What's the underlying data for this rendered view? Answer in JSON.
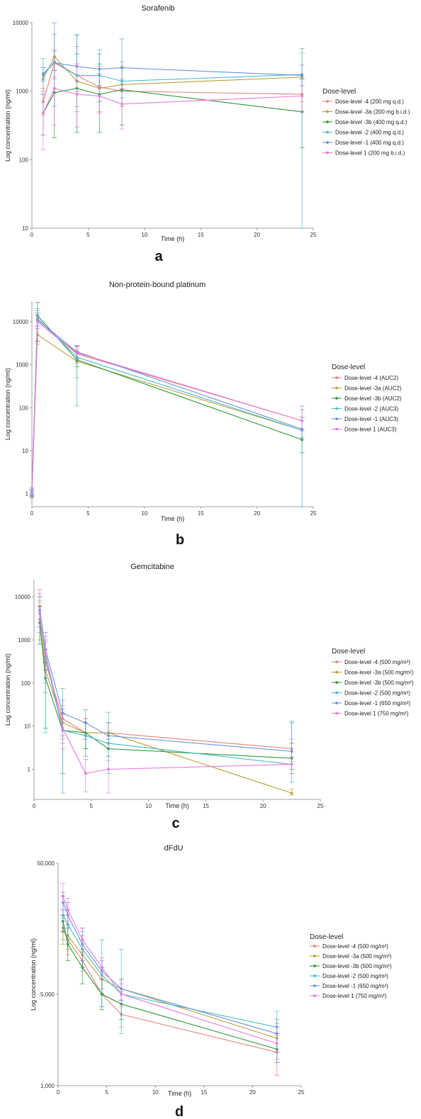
{
  "series_colors": [
    "#e8837b",
    "#b8a23c",
    "#2f9a3a",
    "#46bcc8",
    "#6b93e0",
    "#e67be0"
  ],
  "chart_data": [
    {
      "type": "line",
      "panel_label": "a",
      "title": "Sorafenib",
      "xlabel": "Time (h)",
      "ylabel": "Log concentration (ng/ml)",
      "xlim": [
        0,
        25
      ],
      "ylim": [
        10,
        10000
      ],
      "yscale": "log",
      "xticks": [
        0,
        5,
        10,
        15,
        20,
        25
      ],
      "yticks": [
        {
          "v": 10,
          "label": "10"
        },
        {
          "v": 100,
          "label": "100"
        },
        {
          "v": 1000,
          "label": "1000"
        },
        {
          "v": 10000,
          "label": "10000"
        }
      ],
      "grid": false,
      "legend": {
        "title": "Dose-level",
        "placement": "right"
      },
      "series": [
        {
          "name": "Dose-level -4 (200 mg q.d.)",
          "x": [
            1,
            2,
            4,
            6,
            8,
            24
          ],
          "y": [
            700,
            2600,
            1700,
            1150,
            1000,
            900
          ],
          "lo": [
            450,
            1600,
            1000,
            700,
            600,
            500
          ],
          "hi": [
            1100,
            3800,
            2500,
            1800,
            1500,
            1500
          ]
        },
        {
          "name": "Dose-level -3a (200 mg b.i.d.)",
          "x": [
            1,
            2,
            4,
            6,
            8,
            24
          ],
          "y": [
            1500,
            3200,
            1400,
            1100,
            1250,
            1600
          ],
          "lo": [
            900,
            2000,
            600,
            500,
            600,
            700
          ],
          "hi": [
            2200,
            4000,
            4500,
            2300,
            2300,
            3600
          ]
        },
        {
          "name": "Dose-level -3b (400 mg q.d.)",
          "x": [
            1,
            2,
            4,
            6,
            8,
            24
          ],
          "y": [
            480,
            950,
            1100,
            900,
            1050,
            500
          ],
          "lo": [
            230,
            210,
            250,
            250,
            320,
            150
          ],
          "hi": [
            900,
            2000,
            3500,
            2500,
            2200,
            1500
          ]
        },
        {
          "name": "Dose-level -2 (400 mg q.d.)",
          "x": [
            1,
            2,
            4,
            6,
            8,
            24
          ],
          "y": [
            1700,
            2700,
            1700,
            1700,
            1400,
            1750
          ],
          "lo": [
            900,
            600,
            500,
            700,
            800,
            10
          ],
          "hi": [
            3000,
            6800,
            6800,
            4000,
            2700,
            4200
          ]
        },
        {
          "name": "Dose-level -1 (400 mg q.d.)",
          "x": [
            1,
            2,
            4,
            6,
            8,
            24
          ],
          "y": [
            1800,
            2600,
            2300,
            2100,
            2200,
            1700
          ],
          "lo": [
            1400,
            1500,
            1400,
            1200,
            1000,
            1200
          ],
          "hi": [
            2200,
            11000,
            6500,
            3500,
            5800,
            2400
          ]
        },
        {
          "name": "Dose-level 1 (200 mg b.i.d.)",
          "x": [
            1,
            2,
            4,
            6,
            8,
            24
          ],
          "y": [
            480,
            1100,
            900,
            850,
            650,
            850
          ],
          "lo": [
            140,
            320,
            300,
            480,
            280,
            500
          ],
          "hi": [
            1000,
            3000,
            2500,
            1200,
            1100,
            1200
          ]
        }
      ]
    },
    {
      "type": "line",
      "panel_label": "b",
      "title": "Non-protein-bound platinum",
      "xlabel": "Time (h)",
      "ylabel": "Log concentration (ng/ml)",
      "xlim": [
        0,
        25
      ],
      "ylim": [
        0.5,
        30000
      ],
      "yscale": "log",
      "xticks": [
        0,
        5,
        10,
        15,
        20,
        25
      ],
      "yticks": [
        {
          "v": 1,
          "label": "1"
        },
        {
          "v": 10,
          "label": "10"
        },
        {
          "v": 100,
          "label": "100"
        },
        {
          "v": 1000,
          "label": "1000"
        },
        {
          "v": 10000,
          "label": "10000"
        }
      ],
      "grid": false,
      "legend": {
        "title": "Dose-level",
        "placement": "right"
      },
      "series": [
        {
          "name": "Dose-level -4 (AUC2)",
          "x": [
            0,
            0.5,
            4,
            24
          ],
          "y": [
            1.1,
            10000,
            1800,
            50
          ],
          "lo": [
            0.9,
            7000,
            1100,
            30
          ],
          "hi": [
            1.3,
            14000,
            2600,
            90
          ]
        },
        {
          "name": "Dose-level -3a (AUC2)",
          "x": [
            0,
            0.5,
            4,
            24
          ],
          "y": [
            1.0,
            5000,
            1200,
            30
          ],
          "lo": [
            0.85,
            3000,
            500,
            20
          ],
          "hi": [
            1.2,
            20000,
            2200,
            60
          ]
        },
        {
          "name": "Dose-level -3b (AUC2)",
          "x": [
            0,
            0.5,
            4,
            24
          ],
          "y": [
            0.9,
            14000,
            1300,
            18
          ],
          "lo": [
            0.8,
            3500,
            900,
            9
          ],
          "hi": [
            1.0,
            28000,
            2000,
            30
          ]
        },
        {
          "name": "Dose-level -2 (AUC3)",
          "x": [
            0,
            0.5,
            4,
            24
          ],
          "y": [
            1.1,
            12000,
            1500,
            30
          ],
          "lo": [
            0.9,
            8000,
            110,
            0.25
          ],
          "hi": [
            1.3,
            18000,
            2800,
            110
          ]
        },
        {
          "name": "Dose-level -1 (AUC3)",
          "x": [
            0,
            0.5,
            4,
            24
          ],
          "y": [
            1.2,
            11000,
            2000,
            32
          ],
          "lo": [
            1.0,
            8000,
            1400,
            20
          ],
          "hi": [
            1.4,
            16000,
            2800,
            60
          ]
        },
        {
          "name": "Dose-level 1 (AUC3)",
          "x": [
            0,
            0.5,
            4,
            24
          ],
          "y": [
            1.0,
            10000,
            1900,
            50
          ],
          "lo": [
            0.85,
            7000,
            1300,
            30
          ],
          "hi": [
            1.2,
            14000,
            2700,
            90
          ]
        }
      ]
    },
    {
      "type": "line",
      "panel_label": "c",
      "title": "Gemcitabine",
      "xlabel": "Time (h)",
      "ylabel": "Log concentration (ng/ml)",
      "xlim": [
        0,
        25
      ],
      "ylim": [
        0.2,
        25000
      ],
      "yscale": "log",
      "xticks": [
        0,
        5,
        10,
        15,
        20,
        25
      ],
      "yticks": [
        {
          "v": 1,
          "label": "1"
        },
        {
          "v": 10,
          "label": "10"
        },
        {
          "v": 100,
          "label": "100"
        },
        {
          "v": 1000,
          "label": "1000"
        },
        {
          "v": 10000,
          "label": "10000"
        }
      ],
      "grid": false,
      "legend": {
        "title": "Dose-level",
        "placement": "right"
      },
      "series": [
        {
          "name": "Dose-level -4 (500 mg/m²)",
          "x": [
            0.5,
            1,
            2.5,
            4.5,
            6.5,
            22.5
          ],
          "y": [
            6000,
            300,
            15,
            7,
            7,
            3
          ],
          "lo": [
            2000,
            100,
            5,
            2,
            4,
            1.5
          ],
          "hi": [
            15000,
            900,
            30,
            15,
            12,
            5
          ]
        },
        {
          "name": "Dose-level -3a (500 mg/m²)",
          "x": [
            0.5,
            1,
            2.5,
            4.5,
            6.5,
            22.5
          ],
          "y": [
            3000,
            200,
            12,
            7,
            7,
            0.28
          ],
          "lo": [
            1000,
            60,
            4,
            3,
            3,
            0.25
          ],
          "hi": [
            8000,
            600,
            25,
            15,
            12,
            0.35
          ]
        },
        {
          "name": "Dose-level -3b (500 mg/m²)",
          "x": [
            0.5,
            1,
            2.5,
            4.5,
            6.5,
            22.5
          ],
          "y": [
            2500,
            130,
            8,
            7,
            3,
            1.8
          ],
          "lo": [
            800,
            9,
            0.8,
            3,
            2,
            1.0
          ],
          "hi": [
            6000,
            300,
            20,
            12,
            5,
            4
          ]
        },
        {
          "name": "Dose-level -2 (500 mg/m²)",
          "x": [
            0.5,
            1,
            2.5,
            4.5,
            6.5,
            22.5
          ],
          "y": [
            4000,
            400,
            8,
            6,
            4,
            1.3
          ],
          "lo": [
            1500,
            7,
            0.28,
            2,
            0.8,
            0.5
          ],
          "hi": [
            10000,
            1000,
            75,
            12,
            21,
            13
          ]
        },
        {
          "name": "Dose-level -1 (650 mg/m²)",
          "x": [
            0.5,
            1,
            2.5,
            4.5,
            6.5,
            22.5
          ],
          "y": [
            5000,
            600,
            20,
            12,
            6,
            2.6
          ],
          "lo": [
            2000,
            200,
            6,
            5,
            3,
            0.8
          ],
          "hi": [
            10000,
            1500,
            40,
            24,
            12,
            12
          ]
        },
        {
          "name": "Dose-level 1 (750 mg/m²)",
          "x": [
            0.5,
            1,
            2.5,
            4.5,
            6.5,
            22.5
          ],
          "y": [
            4500,
            500,
            9,
            0.8,
            1.0,
            1.3
          ],
          "lo": [
            1500,
            150,
            3,
            0.3,
            0.28,
            0.8
          ],
          "hi": [
            12000,
            1200,
            18,
            1.7,
            1.6,
            2.0
          ]
        }
      ]
    },
    {
      "type": "line",
      "panel_label": "d",
      "title": "dFdU",
      "xlabel": "Time (h)",
      "ylabel": "Log concentration (ng/ml)",
      "xlim": [
        0,
        25
      ],
      "ylim": [
        1000,
        50000
      ],
      "yscale": "log",
      "xticks": [
        0,
        5,
        10,
        15,
        20,
        25
      ],
      "yticks": [
        {
          "v": 1000,
          "label": "1,000"
        },
        {
          "v": 5000,
          "label": "5,000"
        },
        {
          "v": 50000,
          "label": "50,000"
        }
      ],
      "grid": false,
      "legend": {
        "title": "Dose-level",
        "placement": "right"
      },
      "series": [
        {
          "name": "Dose-level -4 (500 mg/m²)",
          "x": [
            0.5,
            1,
            2.5,
            4.5,
            6.5,
            22.5
          ],
          "y": [
            16000,
            13000,
            9000,
            5000,
            3500,
            1800
          ],
          "lo": [
            13000,
            10000,
            7500,
            4000,
            2800,
            1200
          ],
          "hi": [
            20000,
            16000,
            11000,
            6500,
            4500,
            2400
          ]
        },
        {
          "name": "Dose-level -3a (500 mg/m²)",
          "x": [
            0.5,
            1,
            2.5,
            4.5,
            6.5,
            22.5
          ],
          "y": [
            15000,
            14000,
            10000,
            6500,
            5500,
            2300
          ],
          "lo": [
            12000,
            11000,
            8000,
            5000,
            4500,
            1800
          ],
          "hi": [
            19000,
            17000,
            14000,
            8000,
            6500,
            3000
          ]
        },
        {
          "name": "Dose-level -3b (500 mg/m²)",
          "x": [
            0.5,
            1,
            2.5,
            4.5,
            6.5,
            22.5
          ],
          "y": [
            18000,
            12000,
            8000,
            5000,
            4200,
            1900
          ],
          "lo": [
            15000,
            9000,
            6000,
            3800,
            3200,
            1500
          ],
          "hi": [
            22000,
            16000,
            10500,
            6500,
            5200,
            2500
          ]
        },
        {
          "name": "Dose-level -2 (500 mg/m²)",
          "x": [
            0.5,
            1,
            2.5,
            4.5,
            6.5,
            22.5
          ],
          "y": [
            20000,
            17000,
            11000,
            7000,
            5000,
            2800
          ],
          "lo": [
            15000,
            13000,
            8000,
            4000,
            2500,
            1600
          ],
          "hi": [
            28000,
            22000,
            15000,
            13000,
            11000,
            3700
          ]
        },
        {
          "name": "Dose-level -1 (650 mg/m²)",
          "x": [
            0.5,
            1,
            2.5,
            4.5,
            6.5,
            22.5
          ],
          "y": [
            25000,
            20000,
            12000,
            7500,
            5500,
            2500
          ],
          "lo": [
            20000,
            16000,
            9000,
            5500,
            4500,
            1800
          ],
          "hi": [
            30000,
            25000,
            16000,
            9000,
            6500,
            3200
          ]
        },
        {
          "name": "Dose-level 1 (750 mg/m²)",
          "x": [
            0.5,
            1,
            2.5,
            4.5,
            6.5,
            22.5
          ],
          "y": [
            28000,
            22000,
            13000,
            8000,
            5000,
            2100
          ],
          "lo": [
            22000,
            18000,
            10000,
            6500,
            4000,
            1500
          ],
          "hi": [
            35000,
            27000,
            16000,
            9500,
            6000,
            2800
          ]
        }
      ]
    }
  ]
}
